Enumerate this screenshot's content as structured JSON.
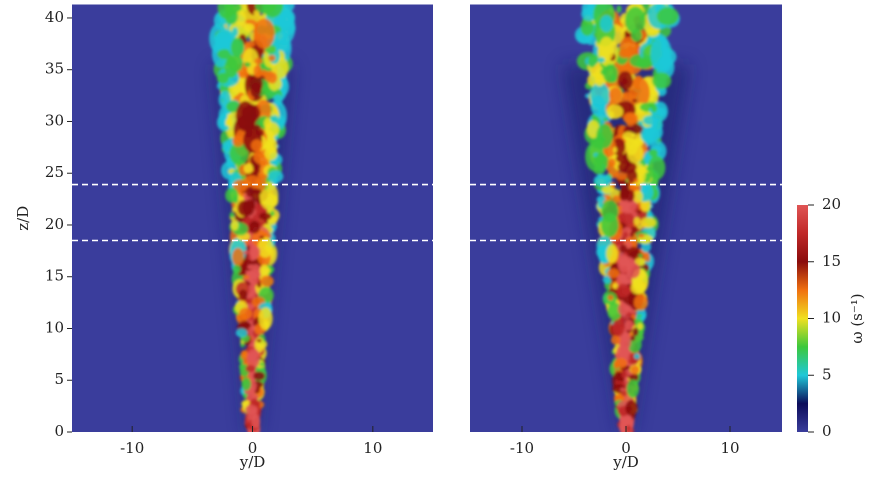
{
  "chart_data": [
    {
      "type": "heatmap",
      "xlabel": "y/D",
      "ylabel": "z/D",
      "xlim": [
        -15,
        15
      ],
      "ylim": [
        0,
        41.3
      ],
      "xticks": [
        -10,
        0,
        10
      ],
      "yticks": [
        0,
        5,
        10,
        15,
        20,
        25,
        30,
        35,
        40
      ],
      "reference_lines": [
        18.5,
        23.9
      ],
      "background": "#3a3d9c"
    },
    {
      "type": "heatmap",
      "xlabel": "y/D",
      "xlim": [
        -15,
        15
      ],
      "ylim": [
        0,
        41.3
      ],
      "xticks": [
        -10,
        0,
        10
      ],
      "reference_lines": [
        18.5,
        23.9
      ],
      "background": "#3a3d9c"
    }
  ],
  "colorbar": {
    "label": "ω (s⁻¹)",
    "lim": [
      0,
      20
    ],
    "ticks": [
      0,
      5,
      10,
      15,
      20
    ],
    "colors": [
      "#3a3d9c",
      "#0c0c5a",
      "#1ec8d8",
      "#3cc83c",
      "#f0e020",
      "#f07010",
      "#8a0c0c",
      "#c02828",
      "#e05555"
    ]
  }
}
